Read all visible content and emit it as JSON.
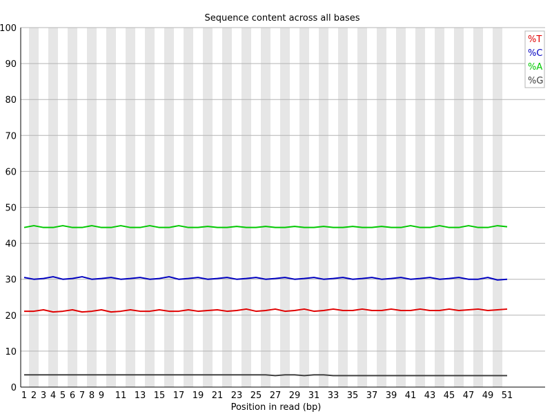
{
  "chart_data": {
    "type": "line",
    "title": "Sequence content across all bases",
    "xlabel": "Position in read (bp)",
    "ylabel": "",
    "ylim": [
      0,
      100
    ],
    "yticks": [
      0,
      10,
      20,
      30,
      40,
      50,
      60,
      70,
      80,
      90,
      100
    ],
    "x_tick_labels": [
      "1",
      "2",
      "3",
      "4",
      "5",
      "6",
      "7",
      "8",
      "9",
      "11",
      "13",
      "15",
      "17",
      "19",
      "21",
      "23",
      "25",
      "27",
      "29",
      "31",
      "33",
      "35",
      "37",
      "39",
      "41",
      "43",
      "45",
      "47",
      "49",
      "51"
    ],
    "positions": [
      1,
      2,
      3,
      4,
      5,
      6,
      7,
      8,
      9,
      10,
      11,
      12,
      13,
      14,
      15,
      16,
      17,
      18,
      19,
      20,
      21,
      22,
      23,
      24,
      25,
      26,
      27,
      28,
      29,
      30,
      31,
      32,
      33,
      34,
      35,
      36,
      37,
      38,
      39,
      40,
      41,
      42,
      43,
      44,
      45,
      46,
      47,
      48,
      49,
      50,
      51
    ],
    "grid": true,
    "legend_position": "top-right",
    "series": [
      {
        "name": "%T",
        "color": "#e00000",
        "values": [
          21.1,
          21.1,
          21.5,
          20.9,
          21.1,
          21.5,
          20.9,
          21.1,
          21.5,
          20.9,
          21.1,
          21.5,
          21.1,
          21.1,
          21.5,
          21.1,
          21.1,
          21.5,
          21.1,
          21.3,
          21.5,
          21.1,
          21.3,
          21.7,
          21.1,
          21.3,
          21.7,
          21.1,
          21.3,
          21.7,
          21.1,
          21.3,
          21.7,
          21.3,
          21.3,
          21.7,
          21.3,
          21.3,
          21.7,
          21.3,
          21.3,
          21.7,
          21.3,
          21.3,
          21.7,
          21.3,
          21.5,
          21.7,
          21.3,
          21.5,
          21.7
        ]
      },
      {
        "name": "%C",
        "color": "#0000c0",
        "values": [
          30.5,
          30.0,
          30.2,
          30.7,
          30.0,
          30.2,
          30.7,
          30.0,
          30.2,
          30.5,
          30.0,
          30.2,
          30.5,
          30.0,
          30.2,
          30.7,
          30.0,
          30.2,
          30.5,
          30.0,
          30.2,
          30.5,
          30.0,
          30.2,
          30.5,
          30.0,
          30.2,
          30.5,
          30.0,
          30.2,
          30.5,
          30.0,
          30.2,
          30.5,
          30.0,
          30.2,
          30.5,
          30.0,
          30.2,
          30.5,
          30.0,
          30.2,
          30.5,
          30.0,
          30.2,
          30.5,
          30.0,
          30.0,
          30.5,
          29.8,
          30.0
        ]
      },
      {
        "name": "%A",
        "color": "#00c800",
        "values": [
          44.4,
          44.9,
          44.4,
          44.4,
          44.9,
          44.4,
          44.4,
          44.9,
          44.4,
          44.4,
          44.9,
          44.4,
          44.4,
          44.9,
          44.4,
          44.4,
          44.9,
          44.4,
          44.4,
          44.7,
          44.4,
          44.4,
          44.7,
          44.4,
          44.4,
          44.7,
          44.4,
          44.4,
          44.7,
          44.4,
          44.4,
          44.7,
          44.4,
          44.4,
          44.7,
          44.4,
          44.4,
          44.7,
          44.4,
          44.4,
          44.9,
          44.4,
          44.4,
          44.9,
          44.4,
          44.4,
          44.9,
          44.4,
          44.4,
          44.9,
          44.6
        ]
      },
      {
        "name": "%G",
        "color": "#404040",
        "values": [
          3.4,
          3.4,
          3.4,
          3.4,
          3.4,
          3.4,
          3.4,
          3.4,
          3.4,
          3.4,
          3.4,
          3.4,
          3.4,
          3.4,
          3.4,
          3.4,
          3.4,
          3.4,
          3.4,
          3.4,
          3.4,
          3.4,
          3.4,
          3.4,
          3.4,
          3.4,
          3.2,
          3.4,
          3.4,
          3.2,
          3.4,
          3.4,
          3.2,
          3.2,
          3.2,
          3.2,
          3.2,
          3.2,
          3.2,
          3.2,
          3.2,
          3.2,
          3.2,
          3.2,
          3.2,
          3.2,
          3.2,
          3.2,
          3.2,
          3.2,
          3.2
        ]
      }
    ]
  }
}
